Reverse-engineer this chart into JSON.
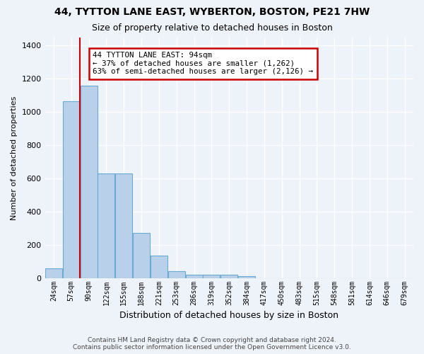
{
  "title": "44, TYTTON LANE EAST, WYBERTON, BOSTON, PE21 7HW",
  "subtitle": "Size of property relative to detached houses in Boston",
  "xlabel": "Distribution of detached houses by size in Boston",
  "ylabel": "Number of detached properties",
  "bin_labels": [
    "24sqm",
    "57sqm",
    "90sqm",
    "122sqm",
    "155sqm",
    "188sqm",
    "221sqm",
    "253sqm",
    "286sqm",
    "319sqm",
    "352sqm",
    "384sqm",
    "417sqm",
    "450sqm",
    "483sqm",
    "515sqm",
    "548sqm",
    "581sqm",
    "614sqm",
    "646sqm",
    "679sqm"
  ],
  "bar_heights": [
    60,
    1065,
    1160,
    630,
    630,
    275,
    135,
    45,
    20,
    20,
    20,
    15,
    0,
    0,
    0,
    0,
    0,
    0,
    0,
    0,
    0
  ],
  "bar_color": "#b8d0ea",
  "bar_edgecolor": "#6aabd2",
  "property_line_x": 1.5,
  "annotation_text": "44 TYTTON LANE EAST: 94sqm\n← 37% of detached houses are smaller (1,262)\n63% of semi-detached houses are larger (2,126) →",
  "annotation_box_color": "#ffffff",
  "annotation_box_edgecolor": "#cc0000",
  "ylim": [
    0,
    1450
  ],
  "yticks": [
    0,
    200,
    400,
    600,
    800,
    1000,
    1200,
    1400
  ],
  "background_color": "#eef2f9",
  "grid_color": "#ffffff",
  "footer_line1": "Contains HM Land Registry data © Crown copyright and database right 2024.",
  "footer_line2": "Contains public sector information licensed under the Open Government Licence v3.0."
}
